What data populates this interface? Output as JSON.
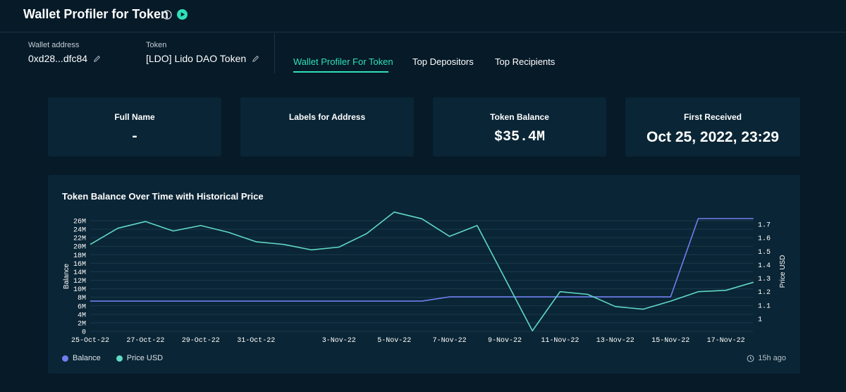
{
  "header": {
    "title": "Wallet Profiler for Token",
    "info_icon": "info-circle-icon",
    "play_icon": "play-circle-icon"
  },
  "wallet": {
    "label": "Wallet address",
    "value": "0xd28...dfc84",
    "edit_icon": "pencil-icon"
  },
  "token": {
    "label": "Token",
    "value": "[LDO] Lido DAO Token",
    "edit_icon": "pencil-icon"
  },
  "tabs": [
    {
      "label": "Wallet Profiler For Token",
      "active": true
    },
    {
      "label": "Top Depositors",
      "active": false
    },
    {
      "label": "Top Recipients",
      "active": false
    }
  ],
  "cards": [
    {
      "title": "Full Name",
      "value": "-"
    },
    {
      "title": "Labels for Address",
      "value": ""
    },
    {
      "title": "Token Balance",
      "value": "$35.4M"
    },
    {
      "title": "First Received",
      "value": "Oct 25, 2022, 23:29"
    }
  ],
  "colors": {
    "accent": "#2fe0b6",
    "balance": "#6f7ff0",
    "price": "#5fd8c4",
    "background": "#061a28",
    "panel": "#0a2535"
  },
  "chart_data": {
    "type": "line",
    "title": "Token Balance Over Time with Historical Price",
    "ylabel_left": "Balance",
    "ylabel_right": "Price USD",
    "x_tick_labels": [
      "25-Oct-22",
      "27-Oct-22",
      "29-Oct-22",
      "31-Oct-22",
      "3-Nov-22",
      "5-Nov-22",
      "7-Nov-22",
      "9-Nov-22",
      "11-Nov-22",
      "13-Nov-22",
      "15-Nov-22",
      "17-Nov-22"
    ],
    "y_left_ticks": [
      "0",
      "2M",
      "4M",
      "6M",
      "8M",
      "10M",
      "12M",
      "14M",
      "16M",
      "18M",
      "20M",
      "22M",
      "24M",
      "26M"
    ],
    "y_right_ticks": [
      "1",
      "1.1",
      "1.2",
      "1.3",
      "1.4",
      "1.5",
      "1.6",
      "1.7"
    ],
    "ylim_left": [
      0,
      26000000
    ],
    "ylim_right": [
      1,
      1.7
    ],
    "grid": true,
    "legend_position": "bottom-left",
    "series": [
      {
        "name": "Balance",
        "axis": "left",
        "x": [
          "2022-10-25",
          "2022-11-06",
          "2022-11-07",
          "2022-11-15",
          "2022-11-16",
          "2022-11-18"
        ],
        "values": [
          7100000,
          7100000,
          8100000,
          8100000,
          26500000,
          26500000
        ]
      },
      {
        "name": "Price USD",
        "axis": "right",
        "x": [
          "2022-10-25",
          "2022-10-26",
          "2022-10-27",
          "2022-10-28",
          "2022-10-29",
          "2022-10-30",
          "2022-10-31",
          "2022-11-01",
          "2022-11-02",
          "2022-11-03",
          "2022-11-04",
          "2022-11-05",
          "2022-11-06",
          "2022-11-07",
          "2022-11-08",
          "2022-11-10",
          "2022-11-11",
          "2022-11-12",
          "2022-11-13",
          "2022-11-14",
          "2022-11-15",
          "2022-11-16",
          "2022-11-17",
          "2022-11-18"
        ],
        "values": [
          1.55,
          1.67,
          1.72,
          1.65,
          1.69,
          1.64,
          1.57,
          1.55,
          1.51,
          1.53,
          1.63,
          1.79,
          1.74,
          1.61,
          1.69,
          0.91,
          1.2,
          1.18,
          1.09,
          1.07,
          1.13,
          1.2,
          1.21,
          1.27
        ]
      }
    ]
  },
  "legend": [
    {
      "label": "Balance",
      "color": "#6f7ff0"
    },
    {
      "label": "Price USD",
      "color": "#5fd8c4"
    }
  ],
  "updated": {
    "text": "15h ago",
    "icon": "clock-icon"
  }
}
